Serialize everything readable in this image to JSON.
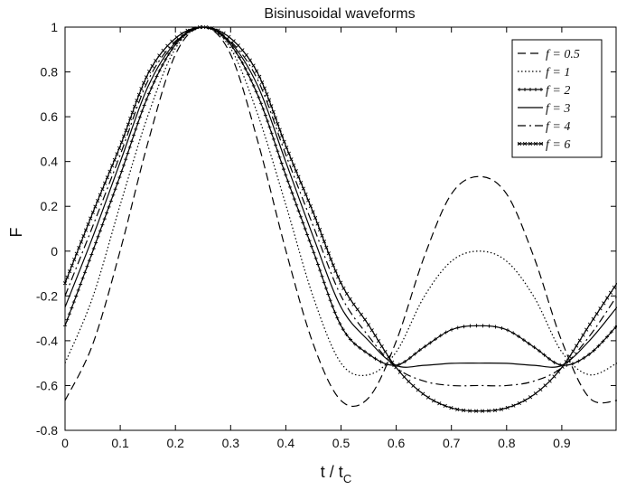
{
  "chart_data": {
    "type": "line",
    "title": "Bisinusoidal waveforms",
    "xlabel": "t / t",
    "xlabel_subscript": "C",
    "ylabel": "F",
    "xlim": [
      0,
      1
    ],
    "ylim": [
      -0.8,
      1
    ],
    "x_ticks": [
      0,
      0.1,
      0.2,
      0.3,
      0.4,
      0.5,
      0.6,
      0.7,
      0.8,
      0.9
    ],
    "x_tick_labels": [
      "0",
      "0.1",
      "0.2",
      "0.3",
      "0.4",
      "0.5",
      "0.6",
      "0.7",
      "0.8",
      "0.9"
    ],
    "y_ticks": [
      -0.8,
      -0.6,
      -0.4,
      -0.2,
      0,
      0.2,
      0.4,
      0.6,
      0.8,
      1
    ],
    "y_tick_labels": [
      "-0.8",
      "-0.6",
      "-0.4",
      "-0.2",
      "0",
      "0.2",
      "0.4",
      "0.6",
      "0.8",
      "1"
    ],
    "grid": false,
    "legend_position": "top-right",
    "line_color": "#000000",
    "x": [
      0,
      0.05,
      0.1,
      0.15,
      0.2,
      0.25,
      0.3,
      0.35,
      0.4,
      0.45,
      0.5,
      0.55,
      0.6,
      0.65,
      0.7,
      0.75,
      0.8,
      0.85,
      0.9,
      0.95,
      1.0
    ],
    "series": [
      {
        "name": "f = 0.5",
        "style": "dashed",
        "values": [
          -0.667,
          -0.417,
          0.003,
          0.483,
          0.878,
          1.0,
          0.878,
          0.483,
          0.003,
          -0.417,
          -0.667,
          -0.655,
          -0.402,
          -0.03,
          0.255,
          0.333,
          0.255,
          -0.03,
          -0.402,
          -0.655,
          -0.667
        ]
      },
      {
        "name": "f = 1",
        "style": "dotted",
        "values": [
          -0.5,
          -0.207,
          0.207,
          0.604,
          0.905,
          1.0,
          0.905,
          0.604,
          0.207,
          -0.207,
          -0.5,
          -0.552,
          -0.45,
          -0.206,
          -0.045,
          0.0,
          -0.045,
          -0.206,
          -0.45,
          -0.552,
          -0.5
        ]
      },
      {
        "name": "f = 2",
        "style": "solid-plus",
        "values": [
          -0.333,
          -0.002,
          0.338,
          0.691,
          0.922,
          1.0,
          0.922,
          0.691,
          0.338,
          -0.002,
          -0.333,
          -0.46,
          -0.509,
          -0.429,
          -0.351,
          -0.333,
          -0.351,
          -0.429,
          -0.509,
          -0.46,
          -0.333
        ]
      },
      {
        "name": "f = 3",
        "style": "solid",
        "values": [
          -0.25,
          0.062,
          0.398,
          0.733,
          0.931,
          1.0,
          0.931,
          0.733,
          0.398,
          0.062,
          -0.25,
          -0.4,
          -0.51,
          -0.51,
          -0.501,
          -0.5,
          -0.501,
          -0.51,
          -0.51,
          -0.4,
          -0.25
        ]
      },
      {
        "name": "f = 4",
        "style": "dashdot",
        "values": [
          -0.2,
          0.11,
          0.43,
          0.76,
          0.937,
          1.0,
          0.937,
          0.76,
          0.43,
          0.11,
          -0.2,
          -0.38,
          -0.52,
          -0.58,
          -0.6,
          -0.6,
          -0.6,
          -0.58,
          -0.52,
          -0.38,
          -0.2
        ]
      },
      {
        "name": "f = 6",
        "style": "solid-x",
        "values": [
          -0.143,
          0.17,
          0.47,
          0.79,
          0.95,
          1.0,
          0.95,
          0.79,
          0.47,
          0.17,
          -0.143,
          -0.33,
          -0.52,
          -0.64,
          -0.7,
          -0.714,
          -0.7,
          -0.64,
          -0.52,
          -0.33,
          -0.143
        ]
      }
    ]
  }
}
